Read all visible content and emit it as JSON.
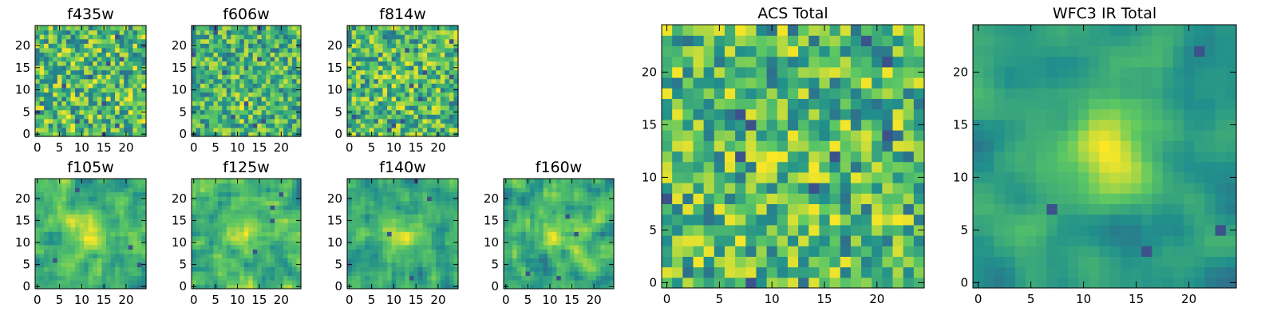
{
  "figure": {
    "colormap": "viridis",
    "colormap_stops": [
      "#440154",
      "#3b528b",
      "#21908c",
      "#5dc863",
      "#fde725"
    ],
    "background": "#ffffff",
    "axis_color": "#000000"
  },
  "chart_data": [
    {
      "type": "heatmap",
      "title": "f435w",
      "grid": [
        25,
        25
      ],
      "seed": 11,
      "smooth": 0,
      "blob": [
        11,
        12,
        0.0
      ],
      "cmap": "viridis",
      "xticks": [
        0,
        5,
        10,
        15,
        20
      ],
      "yticks": [
        0,
        5,
        10,
        15,
        20
      ],
      "xlim": [
        -0.5,
        24.5
      ],
      "ylim": [
        -0.5,
        24.5
      ]
    },
    {
      "type": "heatmap",
      "title": "f606w",
      "grid": [
        25,
        25
      ],
      "seed": 23,
      "smooth": 0,
      "blob": [
        11,
        6,
        0.15
      ],
      "cmap": "viridis",
      "xticks": [
        0,
        5,
        10,
        15,
        20
      ],
      "yticks": [
        0,
        5,
        10,
        15,
        20
      ],
      "xlim": [
        -0.5,
        24.5
      ],
      "ylim": [
        -0.5,
        24.5
      ]
    },
    {
      "type": "heatmap",
      "title": "f814w",
      "grid": [
        25,
        25
      ],
      "seed": 37,
      "smooth": 0,
      "blob": [
        11,
        11,
        0.1
      ],
      "cmap": "viridis",
      "xticks": [
        0,
        5,
        10,
        15,
        20
      ],
      "yticks": [
        0,
        5,
        10,
        15,
        20
      ],
      "xlim": [
        -0.5,
        24.5
      ],
      "ylim": [
        -0.5,
        24.5
      ]
    },
    {
      "type": "heatmap",
      "title": "f105w",
      "grid": [
        25,
        25
      ],
      "seed": 41,
      "smooth": 1,
      "blob": [
        12,
        12,
        0.45
      ],
      "cmap": "viridis",
      "xticks": [
        0,
        5,
        10,
        15,
        20
      ],
      "yticks": [
        0,
        5,
        10,
        15,
        20
      ],
      "xlim": [
        -0.5,
        24.5
      ],
      "ylim": [
        -0.5,
        24.5
      ]
    },
    {
      "type": "heatmap",
      "title": "f125w",
      "grid": [
        25,
        25
      ],
      "seed": 53,
      "smooth": 1,
      "blob": [
        12,
        12,
        0.2
      ],
      "cmap": "viridis",
      "xticks": [
        0,
        5,
        10,
        15,
        20
      ],
      "yticks": [
        0,
        5,
        10,
        15,
        20
      ],
      "xlim": [
        -0.5,
        24.5
      ],
      "ylim": [
        -0.5,
        24.5
      ]
    },
    {
      "type": "heatmap",
      "title": "f140w",
      "grid": [
        25,
        25
      ],
      "seed": 67,
      "smooth": 1,
      "blob": [
        12,
        12,
        0.35
      ],
      "cmap": "viridis",
      "xticks": [
        0,
        5,
        10,
        15,
        20
      ],
      "yticks": [
        0,
        5,
        10,
        15,
        20
      ],
      "xlim": [
        -0.5,
        24.5
      ],
      "ylim": [
        -0.5,
        24.5
      ]
    },
    {
      "type": "heatmap",
      "title": "f160w",
      "grid": [
        25,
        25
      ],
      "seed": 79,
      "smooth": 1,
      "blob": [
        12,
        12,
        0.3
      ],
      "cmap": "viridis",
      "xticks": [
        0,
        5,
        10,
        15,
        20
      ],
      "yticks": [
        0,
        5,
        10,
        15,
        20
      ],
      "xlim": [
        -0.5,
        24.5
      ],
      "ylim": [
        -0.5,
        24.5
      ]
    },
    {
      "type": "heatmap",
      "title": "ACS Total",
      "grid": [
        25,
        25
      ],
      "seed": 97,
      "smooth": 0,
      "blob": [
        12,
        12,
        0.1
      ],
      "cmap": "viridis",
      "xticks": [
        0,
        5,
        10,
        15,
        20
      ],
      "yticks": [
        0,
        5,
        10,
        15,
        20
      ],
      "xlim": [
        -0.5,
        24.5
      ],
      "ylim": [
        -0.5,
        24.5
      ]
    },
    {
      "type": "heatmap",
      "title": "WFC3 IR Total",
      "grid": [
        25,
        25
      ],
      "seed": 131,
      "smooth": 2,
      "blob": [
        12,
        12,
        0.6
      ],
      "cmap": "viridis",
      "xticks": [
        0,
        5,
        10,
        15,
        20
      ],
      "yticks": [
        0,
        5,
        10,
        15,
        20
      ],
      "xlim": [
        -0.5,
        24.5
      ],
      "ylim": [
        -0.5,
        24.5
      ]
    }
  ]
}
